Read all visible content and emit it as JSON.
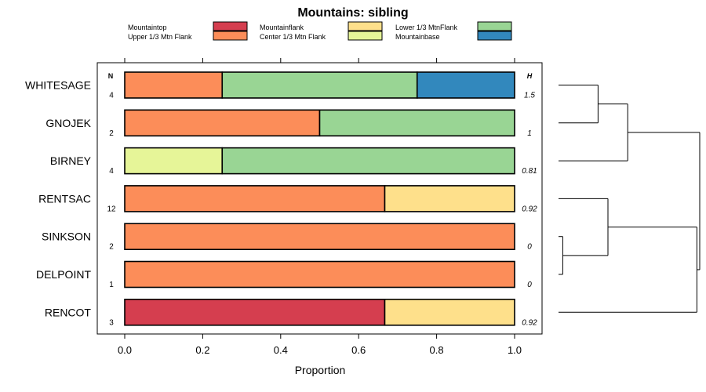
{
  "chart_data": {
    "type": "bar",
    "orientation": "horizontal",
    "stacked": true,
    "title": "Mountains: sibling",
    "xlabel": "Proportion",
    "ylabel": "",
    "xlim": [
      0,
      1
    ],
    "xticks": [
      0,
      0.2,
      0.4,
      0.6,
      0.8,
      1
    ],
    "xtick_labels": [
      "0.0",
      "0.2",
      "0.4",
      "0.6",
      "0.8",
      "1.0"
    ],
    "n_header": "N",
    "h_header": "H",
    "legend": [
      {
        "label": "Mountaintop",
        "color": "#d53e4f"
      },
      {
        "label": "Upper 1/3 Mtn Flank",
        "color": "#fc8d59"
      },
      {
        "label": "Mountainflank",
        "color": "#fee08b"
      },
      {
        "label": "Center 1/3 Mtn Flank",
        "color": "#e6f598"
      },
      {
        "label": "Lower 1/3 MtnFlank",
        "color": "#99d594"
      },
      {
        "label": "Mountainbase",
        "color": "#3288bd"
      }
    ],
    "categories": [
      "WHITESAGE",
      "GNOJEK",
      "BIRNEY",
      "RENTSAC",
      "SINKSON",
      "DELPOINT",
      "RENCOT"
    ],
    "n": [
      "4",
      "2",
      "4",
      "12",
      "2",
      "1",
      "3"
    ],
    "h": [
      "1.5",
      "1",
      "0.81",
      "0.92",
      "0",
      "0",
      "0.92"
    ],
    "series": [
      {
        "name": "Mountaintop",
        "values": [
          0,
          0,
          0,
          0,
          0,
          0,
          0.667
        ]
      },
      {
        "name": "Upper 1/3 Mtn Flank",
        "values": [
          0.25,
          0.5,
          0,
          0.667,
          1,
          1,
          0
        ]
      },
      {
        "name": "Mountainflank",
        "values": [
          0,
          0,
          0,
          0.333,
          0,
          0,
          0.333
        ]
      },
      {
        "name": "Center 1/3 Mtn Flank",
        "values": [
          0,
          0,
          0.25,
          0,
          0,
          0,
          0
        ]
      },
      {
        "name": "Lower 1/3 MtnFlank",
        "values": [
          0.5,
          0.5,
          0.75,
          0,
          0,
          0,
          0
        ]
      },
      {
        "name": "Mountainbase",
        "values": [
          0.25,
          0,
          0,
          0,
          0,
          0,
          0
        ]
      }
    ],
    "dendrogram": {
      "leaves": [
        "WHITESAGE",
        "GNOJEK",
        "BIRNEY",
        "RENTSAC",
        "SINKSON",
        "DELPOINT",
        "RENCOT"
      ],
      "merges": [
        {
          "a": "SINKSON",
          "b": "DELPOINT",
          "height": 0.03
        },
        {
          "a": "WHITESAGE",
          "b": "GNOJEK",
          "height": 0.28
        },
        {
          "a": "m0",
          "b": "RENTSAC",
          "height": 0.35
        },
        {
          "a": "m1",
          "b": "BIRNEY",
          "height": 0.49
        },
        {
          "a": "m2",
          "b": "RENCOT",
          "height": 0.98
        },
        {
          "a": "m3",
          "b": "m4",
          "height": 1.0
        }
      ]
    }
  }
}
